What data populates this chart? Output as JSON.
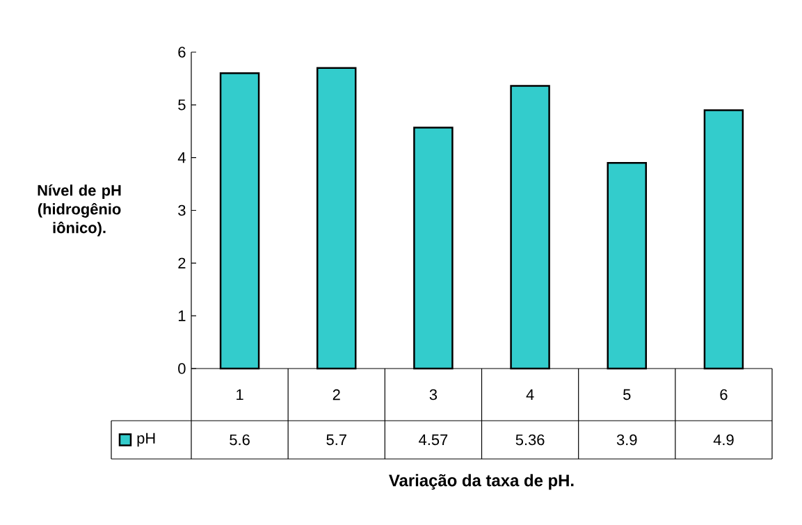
{
  "chart_data": {
    "type": "bar",
    "xlabel": "Variação da taxa de pH.",
    "ylabel": "Nível de pH (hidrogênio iônico).",
    "categories": [
      "1",
      "2",
      "3",
      "4",
      "5",
      "6"
    ],
    "series": [
      {
        "name": "pH",
        "color": "#33cccc",
        "values": [
          5.6,
          5.7,
          4.57,
          5.36,
          3.9,
          4.9
        ]
      }
    ],
    "ylim": [
      0,
      6
    ],
    "yticks": [
      0,
      1,
      2,
      3,
      4,
      5,
      6
    ],
    "data_labels": true,
    "legend": "bottom",
    "grid": false
  }
}
